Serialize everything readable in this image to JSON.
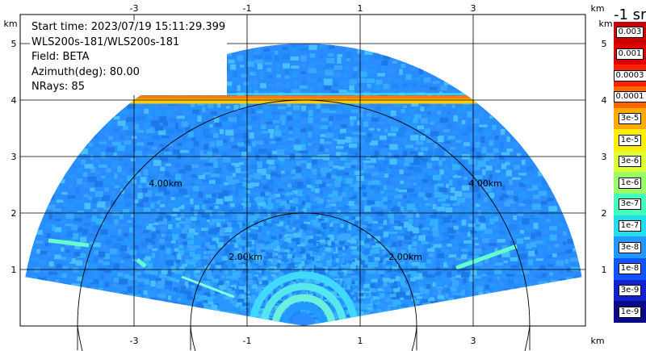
{
  "info": {
    "start_time": "Start time: 2023/07/19 15:11:29.399",
    "instrument": "WLS200s-181/WLS200s-181",
    "field": "Field: BETA",
    "azimuth": "Azimuth(deg): 80.00",
    "nrays": "NRays: 85"
  },
  "axes": {
    "x_ticks": [
      "-3",
      "-1",
      "1",
      "3"
    ],
    "y_ticks": [
      "5",
      "4",
      "3",
      "2",
      "1"
    ],
    "unit": "km",
    "range_ring_labels": [
      "4.00km",
      "2.00km",
      "2.00km",
      "4.00km"
    ]
  },
  "colorbar": {
    "title": "-1 sr",
    "labels": [
      "0.003",
      "0.001",
      "0.0003",
      "0.0001",
      "3e-5",
      "1e-5",
      "3e-6",
      "1e-6",
      "3e-7",
      "1e-7",
      "3e-8",
      "1e-8",
      "3e-9",
      "1e-9"
    ],
    "colors": [
      "#cc0000",
      "#dd0000",
      "#ff2200",
      "#ff6600",
      "#ffaa00",
      "#ffee00",
      "#ddff33",
      "#99ff66",
      "#44ffbb",
      "#22ddee",
      "#2299ff",
      "#1155ff",
      "#1122cc",
      "#0a0a88"
    ]
  }
}
